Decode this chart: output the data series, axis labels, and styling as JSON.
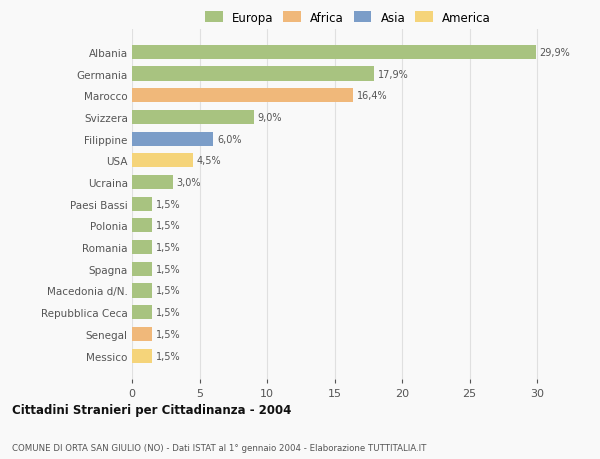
{
  "categories": [
    "Albania",
    "Germania",
    "Marocco",
    "Svizzera",
    "Filippine",
    "USA",
    "Ucraina",
    "Paesi Bassi",
    "Polonia",
    "Romania",
    "Spagna",
    "Macedonia d/N.",
    "Repubblica Ceca",
    "Senegal",
    "Messico"
  ],
  "values": [
    29.9,
    17.9,
    16.4,
    9.0,
    6.0,
    4.5,
    3.0,
    1.5,
    1.5,
    1.5,
    1.5,
    1.5,
    1.5,
    1.5,
    1.5
  ],
  "labels": [
    "29,9%",
    "17,9%",
    "16,4%",
    "9,0%",
    "6,0%",
    "4,5%",
    "3,0%",
    "1,5%",
    "1,5%",
    "1,5%",
    "1,5%",
    "1,5%",
    "1,5%",
    "1,5%",
    "1,5%"
  ],
  "bar_colors": [
    "#a8c380",
    "#a8c380",
    "#f0b87a",
    "#a8c380",
    "#7b9dc8",
    "#f5d47a",
    "#a8c380",
    "#a8c380",
    "#a8c380",
    "#a8c380",
    "#a8c380",
    "#a8c380",
    "#a8c380",
    "#f0b87a",
    "#f5d47a"
  ],
  "legend_labels": [
    "Europa",
    "Africa",
    "Asia",
    "America"
  ],
  "legend_colors": [
    "#a8c380",
    "#f0b87a",
    "#7b9dc8",
    "#f5d47a"
  ],
  "xlim": [
    0,
    32
  ],
  "xticks": [
    0,
    5,
    10,
    15,
    20,
    25,
    30
  ],
  "title": "Cittadini Stranieri per Cittadinanza - 2004",
  "subtitle": "COMUNE DI ORTA SAN GIULIO (NO) - Dati ISTAT al 1° gennaio 2004 - Elaborazione TUTTITALIA.IT",
  "bg_color": "#f9f9f9",
  "grid_color": "#e0e0e0"
}
